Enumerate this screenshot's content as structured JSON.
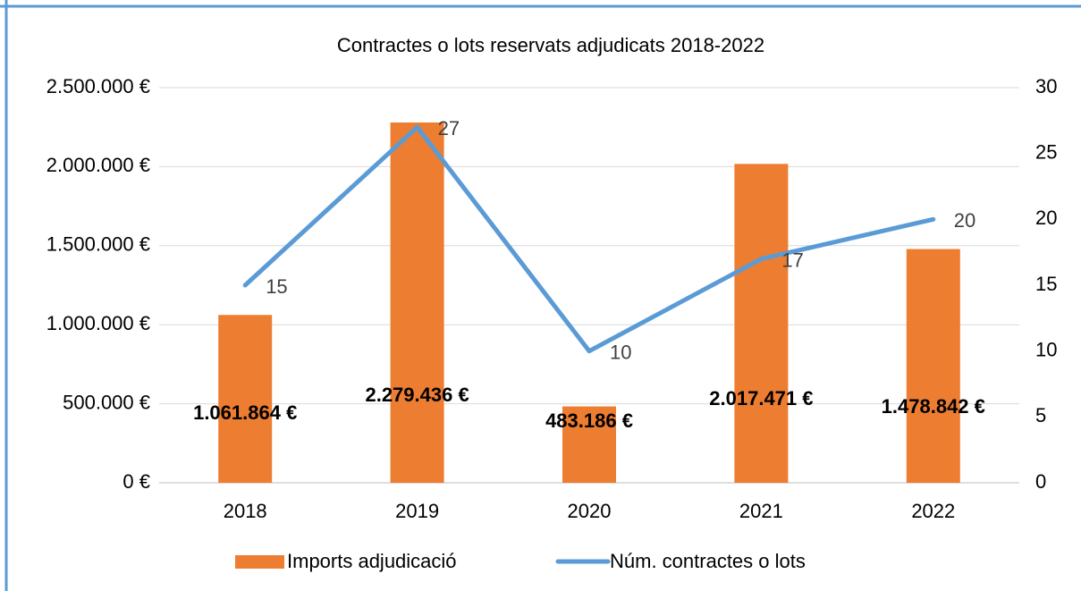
{
  "chart_data": {
    "type": "bar_line",
    "title": "Contractes o lots reservats adjudicats 2018-2022",
    "categories": [
      "2018",
      "2019",
      "2020",
      "2021",
      "2022"
    ],
    "series": [
      {
        "name": "Imports adjudicació",
        "type": "bar",
        "color": "#ed7d31",
        "axis": "y",
        "values": [
          1061864,
          2279436,
          483186,
          2017471,
          1478842
        ],
        "value_labels": [
          "1.061.864 €",
          "2.279.436 €",
          "483.186 €",
          "2.017.471 €",
          "1.478.842 €"
        ]
      },
      {
        "name": "Núm. contractes o lots",
        "type": "line",
        "color": "#5b9bd5",
        "axis": "y2",
        "values": [
          15,
          27,
          10,
          17,
          20
        ]
      }
    ],
    "ylim": [
      0,
      2500000
    ],
    "yticks": [
      {
        "value": 0,
        "label": "0 €"
      },
      {
        "value": 500000,
        "label": "500.000 €"
      },
      {
        "value": 1000000,
        "label": "1.000.000 €"
      },
      {
        "value": 1500000,
        "label": "1.500.000 €"
      },
      {
        "value": 2000000,
        "label": "2.000.000 €"
      },
      {
        "value": 2500000,
        "label": "2.500.000 €"
      }
    ],
    "y2lim": [
      0,
      30
    ],
    "y2ticks": [
      0,
      5,
      10,
      15,
      20,
      25,
      30
    ],
    "grid": true,
    "legend": "bottom"
  }
}
